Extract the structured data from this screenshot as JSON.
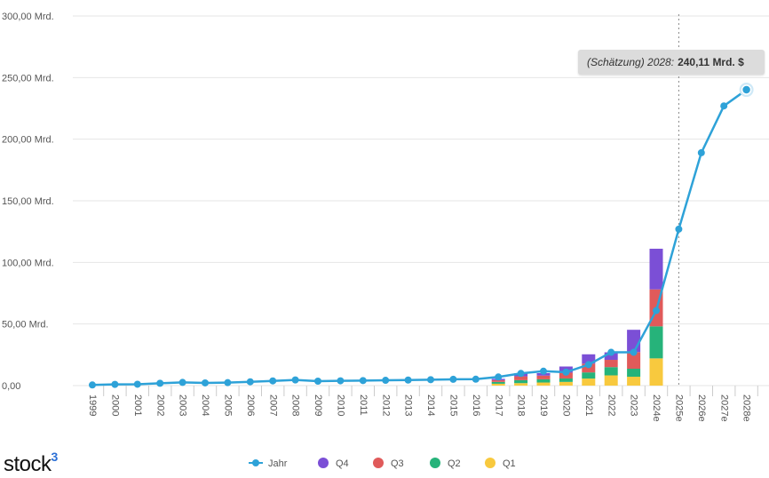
{
  "tooltip": {
    "prefix": "(Schätzung) 2028:",
    "value": "240,11 Mrd. $"
  },
  "logo": {
    "text": "stock",
    "superscript": "3",
    "accent_color": "#2a6fd6"
  },
  "colors": {
    "line": "#2ea2d8",
    "q4": "#7b4fd6",
    "q3": "#e05a5a",
    "q2": "#26b37a",
    "q1": "#f8c93e",
    "grid": "#e6e6e6",
    "estimate_marker": "#888888"
  },
  "chart_data": {
    "type": "bar",
    "categories": [
      "1999",
      "2000",
      "2001",
      "2002",
      "2003",
      "2004",
      "2005",
      "2006",
      "2007",
      "2008",
      "2009",
      "2010",
      "2011",
      "2012",
      "2013",
      "2014",
      "2015",
      "2016",
      "2017",
      "2018",
      "2019",
      "2020",
      "2021",
      "2022",
      "2023",
      "2024e",
      "2025e",
      "2026e",
      "2027e",
      "2028e"
    ],
    "ylim": [
      0,
      300
    ],
    "y_ticks": [
      0,
      50,
      100,
      150,
      200,
      250,
      300
    ],
    "y_tick_labels": [
      "0,00",
      "50,00 Mrd.",
      "100,00 Mrd.",
      "150,00 Mrd.",
      "200,00 Mrd.",
      "250,00 Mrd.",
      "300,00 Mrd."
    ],
    "estimate_divider_after": "2024e",
    "legend": [
      "Jahr",
      "Q4",
      "Q3",
      "Q2",
      "Q1"
    ],
    "series": [
      {
        "name": "Jahr",
        "kind": "line",
        "values": [
          0.5,
          1.0,
          1.1,
          1.9,
          2.6,
          2.2,
          2.4,
          3.1,
          3.8,
          4.6,
          3.6,
          3.9,
          4.1,
          4.3,
          4.5,
          4.8,
          5.1,
          5.2,
          7.0,
          9.9,
          11.7,
          10.9,
          17.0,
          27.0,
          27.0,
          60.9,
          127.0,
          189.0,
          227.0,
          240.11
        ]
      },
      {
        "name": "Q1",
        "kind": "bar",
        "values": [
          0,
          0,
          0,
          0,
          0,
          0,
          0,
          0,
          0,
          0,
          0,
          0,
          0,
          0,
          0,
          0,
          0,
          0,
          1.5,
          2.0,
          2.5,
          3.0,
          5.7,
          8.3,
          7.2,
          22.1,
          null,
          null,
          null,
          null
        ]
      },
      {
        "name": "Q2",
        "kind": "bar",
        "values": [
          0,
          0,
          0,
          0,
          0,
          0,
          0,
          0,
          0,
          0,
          0,
          0,
          0,
          0,
          0,
          0,
          0,
          0,
          1.5,
          2.4,
          2.6,
          2.8,
          5.0,
          6.7,
          6.5,
          26.0,
          null,
          null,
          null,
          null
        ]
      },
      {
        "name": "Q3",
        "kind": "bar",
        "values": [
          0,
          0,
          0,
          0,
          0,
          0,
          0,
          0,
          0,
          0,
          0,
          0,
          0,
          0,
          0,
          0,
          0,
          0,
          1.4,
          3.1,
          3.0,
          4.7,
          7.1,
          5.9,
          13.5,
          30.0,
          null,
          null,
          null,
          null
        ]
      },
      {
        "name": "Q4",
        "kind": "bar",
        "values": [
          0,
          0,
          0,
          0,
          0,
          0,
          0,
          0,
          0,
          0,
          0,
          0,
          0,
          0,
          0,
          0,
          0,
          0,
          1.1,
          2.5,
          2.0,
          5.0,
          7.6,
          6.1,
          18.1,
          33.0,
          null,
          null,
          null,
          null
        ]
      }
    ]
  }
}
